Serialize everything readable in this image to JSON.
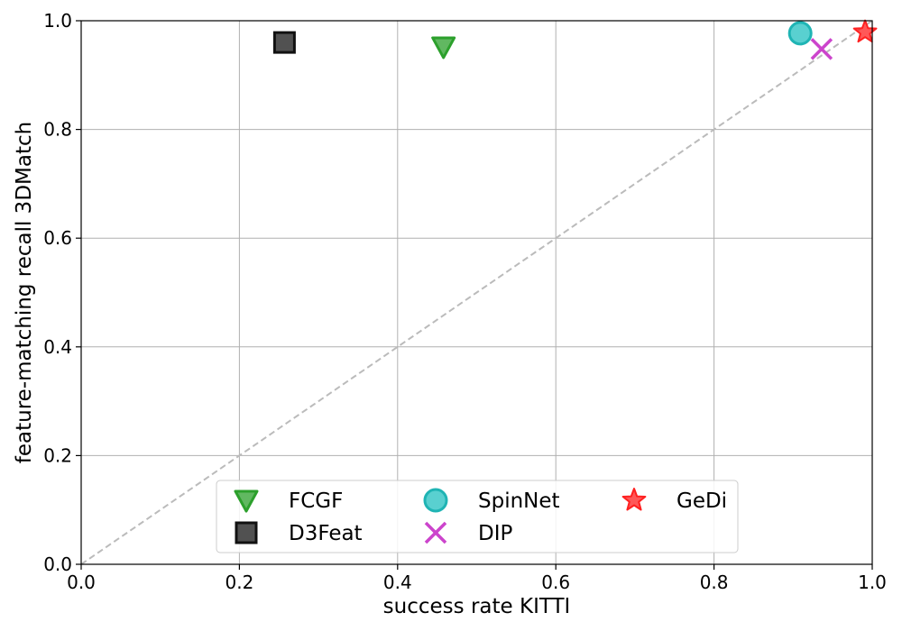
{
  "chart_data": {
    "type": "scatter",
    "title": "",
    "xlabel": "success rate KITTI",
    "ylabel": "feature-matching recall 3DMatch",
    "xlim": [
      0.0,
      1.0
    ],
    "ylim": [
      0.0,
      1.0
    ],
    "xticks": [
      "0.0",
      "0.2",
      "0.4",
      "0.6",
      "0.8",
      "1.0"
    ],
    "yticks": [
      "0.0",
      "0.2",
      "0.4",
      "0.6",
      "0.8",
      "1.0"
    ],
    "grid": true,
    "legend_position": "lower-center",
    "reference_line": {
      "style": "dashed",
      "color": "#bbbbbb",
      "from": [
        0.0,
        0.0
      ],
      "to": [
        1.0,
        1.0
      ]
    },
    "series": [
      {
        "name": "FCGF",
        "marker": "triangle-down-icon",
        "color": "#2ca02c",
        "x": 0.458,
        "y": 0.952
      },
      {
        "name": "D3Feat",
        "marker": "square-icon",
        "color": "#333333",
        "x": 0.257,
        "y": 0.96
      },
      {
        "name": "SpinNet",
        "marker": "circle-icon",
        "color": "#3cc8c8",
        "x": 0.909,
        "y": 0.977
      },
      {
        "name": "DIP",
        "marker": "x-icon",
        "color": "#cc44cc",
        "x": 0.936,
        "y": 0.948
      },
      {
        "name": "GeDi",
        "marker": "star-icon",
        "color": "#ff2020",
        "x": 0.991,
        "y": 0.979
      }
    ]
  }
}
